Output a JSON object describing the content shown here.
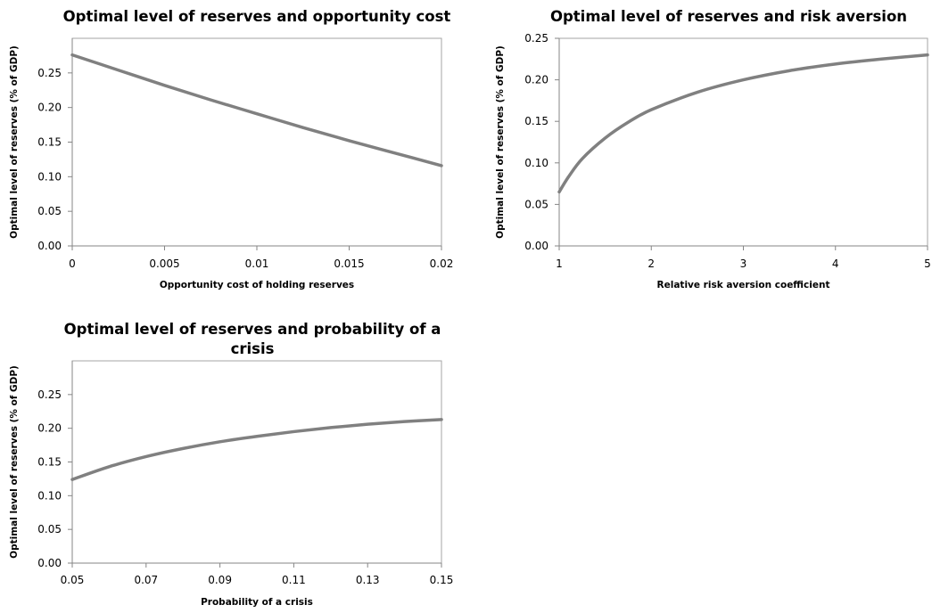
{
  "chart_data": [
    {
      "type": "line",
      "title_lines": [
        "Optimal level of reserves and opportunity cost"
      ],
      "xlabel": "Opportunity cost of holding reserves",
      "ylabel": "Optimal level of reserves (% of GDP)",
      "xlim": [
        0,
        0.02
      ],
      "ylim": [
        0,
        0.3
      ],
      "x_ticks": [
        "0",
        "0.005",
        "0.01",
        "0.015",
        "0.02"
      ],
      "y_ticks": [
        "0.00",
        "0.05",
        "0.10",
        "0.15",
        "0.20",
        "0.25"
      ],
      "grid": false,
      "series": [
        {
          "color": "#808080",
          "x": [
            0,
            0.0025,
            0.005,
            0.0075,
            0.01,
            0.0125,
            0.015,
            0.0175,
            0.02
          ],
          "y": [
            0.276,
            0.254,
            0.232,
            0.211,
            0.191,
            0.171,
            0.152,
            0.134,
            0.116
          ]
        }
      ]
    },
    {
      "type": "line",
      "title_lines": [
        "Optimal level of reserves and risk aversion"
      ],
      "xlabel": "Relative risk aversion coefficient",
      "ylabel": "Optimal level of reserves (% of GDP)",
      "xlim": [
        1,
        5
      ],
      "ylim": [
        0,
        0.25
      ],
      "x_ticks": [
        "1",
        "2",
        "3",
        "4",
        "5"
      ],
      "y_ticks": [
        "0.00",
        "0.05",
        "0.10",
        "0.15",
        "0.20",
        "0.25"
      ],
      "grid": false,
      "series": [
        {
          "color": "#808080",
          "x": [
            1,
            1.1,
            1.25,
            1.5,
            1.75,
            2,
            2.5,
            3,
            3.5,
            4,
            4.5,
            5
          ],
          "y": [
            0.065,
            0.083,
            0.105,
            0.13,
            0.149,
            0.164,
            0.185,
            0.2,
            0.211,
            0.219,
            0.225,
            0.23
          ]
        }
      ]
    },
    {
      "type": "line",
      "title_lines": [
        "Optimal level of reserves and probability of a",
        "crisis"
      ],
      "xlabel": "Probability of a crisis",
      "ylabel": "Optimal level of reserves (% of GDP)",
      "xlim": [
        0.05,
        0.15
      ],
      "ylim": [
        0,
        0.3
      ],
      "x_ticks": [
        "0.05",
        "0.07",
        "0.09",
        "0.11",
        "0.13",
        "0.15"
      ],
      "y_ticks": [
        "0.00",
        "0.05",
        "0.10",
        "0.15",
        "0.20",
        "0.25"
      ],
      "grid": false,
      "series": [
        {
          "color": "#808080",
          "x": [
            0.05,
            0.06,
            0.07,
            0.08,
            0.09,
            0.1,
            0.11,
            0.12,
            0.13,
            0.14,
            0.15
          ],
          "y": [
            0.124,
            0.143,
            0.158,
            0.17,
            0.18,
            0.188,
            0.195,
            0.201,
            0.206,
            0.21,
            0.213
          ]
        }
      ]
    }
  ]
}
